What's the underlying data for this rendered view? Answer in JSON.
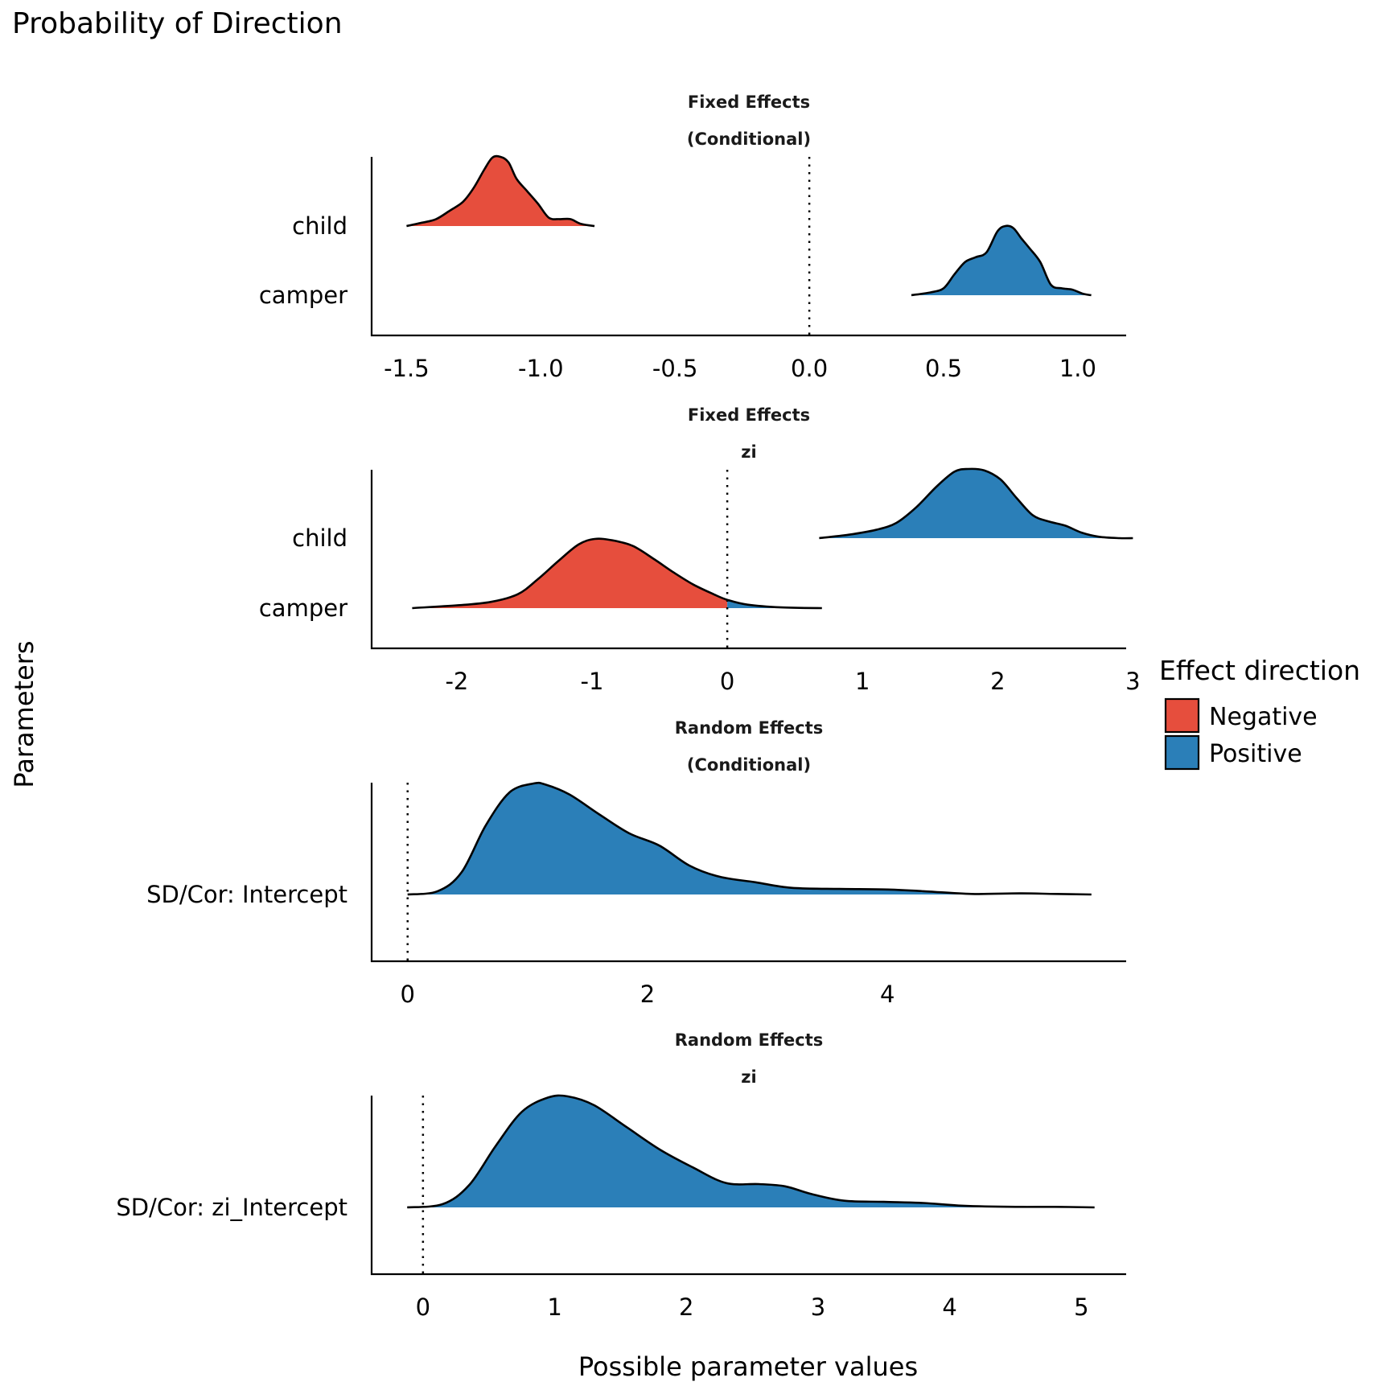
{
  "chart_data": {
    "type": "area",
    "subtype": "ridgeline-density",
    "title": "Probability of Direction",
    "xlabel": "Possible parameter values",
    "ylabel": "Parameters",
    "legend": {
      "title": "Effect direction",
      "placement": "right",
      "entries": [
        {
          "label": "Negative",
          "color": "#E64E3D"
        },
        {
          "label": "Positive",
          "color": "#2B7FB8"
        }
      ]
    },
    "reference_line": {
      "x": 0,
      "style": "dotted"
    },
    "panels": [
      {
        "strip": [
          "Fixed Effects",
          "(Conditional)"
        ],
        "xlim": [
          -1.63,
          1.18
        ],
        "ticks": [
          -1.5,
          -1.0,
          -0.5,
          0.0,
          0.5,
          1.0
        ],
        "tick_labels": [
          "-1.5",
          "-1.0",
          "-0.5",
          "0.0",
          "0.5",
          "1.0"
        ],
        "rows": [
          "child",
          "camper"
        ],
        "series": [
          {
            "name": "child",
            "x": [
              -1.5,
              -1.44,
              -1.39,
              -1.34,
              -1.29,
              -1.25,
              -1.21,
              -1.18,
              -1.15,
              -1.12,
              -1.09,
              -1.05,
              -1.01,
              -0.97,
              -0.93,
              -0.89,
              -0.85,
              -0.8
            ],
            "density": [
              0.0,
              0.05,
              0.1,
              0.22,
              0.35,
              0.55,
              0.82,
              0.99,
              1.0,
              0.92,
              0.68,
              0.5,
              0.32,
              0.12,
              0.1,
              0.1,
              0.03,
              0.0
            ]
          },
          {
            "name": "camper",
            "x": [
              0.38,
              0.45,
              0.5,
              0.54,
              0.58,
              0.62,
              0.66,
              0.7,
              0.73,
              0.76,
              0.79,
              0.82,
              0.86,
              0.9,
              0.94,
              0.98,
              1.02,
              1.05
            ],
            "density": [
              0.0,
              0.04,
              0.1,
              0.3,
              0.48,
              0.55,
              0.62,
              0.92,
              1.0,
              0.97,
              0.82,
              0.68,
              0.48,
              0.15,
              0.1,
              0.08,
              0.02,
              0.0
            ]
          }
        ]
      },
      {
        "strip": [
          "Fixed Effects",
          "zi"
        ],
        "xlim": [
          -2.63,
          2.95
        ],
        "ticks": [
          -2,
          -1,
          0,
          1,
          2,
          3
        ],
        "tick_labels": [
          "-2",
          "-1",
          "0",
          "1",
          "2",
          "3"
        ],
        "rows": [
          "child",
          "camper"
        ],
        "series": [
          {
            "name": "child",
            "x": [
              0.68,
              0.9,
              1.1,
              1.25,
              1.4,
              1.55,
              1.68,
              1.78,
              1.9,
              2.02,
              2.14,
              2.26,
              2.38,
              2.5,
              2.62,
              2.75,
              2.9,
              3.0
            ],
            "density": [
              0.0,
              0.05,
              0.12,
              0.22,
              0.45,
              0.75,
              0.96,
              1.0,
              0.98,
              0.85,
              0.58,
              0.33,
              0.24,
              0.18,
              0.08,
              0.02,
              0.0,
              0.0
            ]
          },
          {
            "name": "camper",
            "x": [
              -2.33,
              -2.0,
              -1.75,
              -1.55,
              -1.4,
              -1.25,
              -1.1,
              -0.98,
              -0.85,
              -0.7,
              -0.55,
              -0.4,
              -0.25,
              -0.1,
              0.0,
              0.15,
              0.4,
              0.7
            ],
            "density": [
              0.0,
              0.04,
              0.09,
              0.2,
              0.42,
              0.68,
              0.92,
              1.0,
              0.98,
              0.9,
              0.72,
              0.52,
              0.34,
              0.2,
              0.12,
              0.05,
              0.01,
              0.0
            ]
          }
        ]
      },
      {
        "strip": [
          "Random Effects",
          "(Conditional)"
        ],
        "xlim": [
          -0.3,
          5.99
        ],
        "ticks": [
          0,
          2,
          4
        ],
        "tick_labels": [
          "0",
          "2",
          "4"
        ],
        "rows": [
          "SD/Cor:  Intercept"
        ],
        "series": [
          {
            "name": "SD/Cor:  Intercept",
            "x": [
              0.0,
              0.25,
              0.45,
              0.65,
              0.85,
              1.05,
              1.15,
              1.35,
              1.6,
              1.85,
              2.1,
              2.35,
              2.6,
              2.9,
              3.2,
              3.6,
              4.0,
              4.3,
              4.7,
              5.1,
              5.4,
              5.7
            ],
            "density": [
              0.0,
              0.03,
              0.2,
              0.62,
              0.92,
              1.0,
              0.99,
              0.9,
              0.72,
              0.55,
              0.44,
              0.26,
              0.16,
              0.11,
              0.06,
              0.05,
              0.045,
              0.03,
              0.005,
              0.01,
              0.005,
              0.0
            ]
          }
        ]
      },
      {
        "strip": [
          "Random Effects",
          "zi"
        ],
        "xlim": [
          -0.39,
          5.34
        ],
        "ticks": [
          0,
          1,
          2,
          3,
          4,
          5
        ],
        "tick_labels": [
          "0",
          "1",
          "2",
          "3",
          "4",
          "5"
        ],
        "rows": [
          "SD/Cor:  zi_Intercept"
        ],
        "series": [
          {
            "name": "SD/Cor:  zi_Intercept",
            "x": [
              -0.12,
              0.15,
              0.35,
              0.55,
              0.75,
              0.95,
              1.1,
              1.3,
              1.55,
              1.8,
              2.05,
              2.3,
              2.55,
              2.75,
              2.95,
              3.2,
              3.5,
              3.8,
              4.1,
              4.5,
              4.8,
              5.1
            ],
            "density": [
              0.0,
              0.03,
              0.2,
              0.55,
              0.86,
              0.99,
              1.0,
              0.92,
              0.72,
              0.52,
              0.36,
              0.22,
              0.21,
              0.19,
              0.12,
              0.06,
              0.05,
              0.04,
              0.015,
              0.005,
              0.005,
              0.0
            ]
          }
        ]
      }
    ]
  }
}
